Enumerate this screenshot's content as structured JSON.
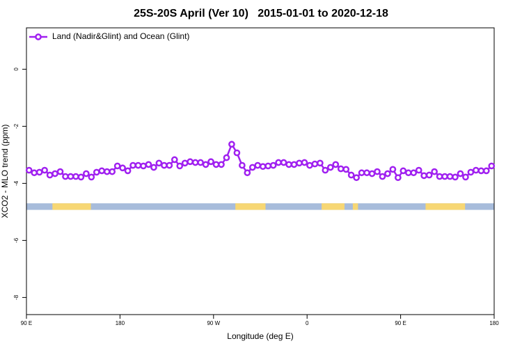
{
  "chart_data": {
    "type": "line",
    "title": "25S-20S April (Ver 10)   2015-01-01 to 2020-12-18",
    "xlabel": "Longitude (deg E)",
    "ylabel": "XCO2 - MLO trend (ppm)",
    "xlim": [
      90,
      540
    ],
    "xticks": [
      {
        "value": 90,
        "label": "90 E"
      },
      {
        "value": 180,
        "label": "180"
      },
      {
        "value": 270,
        "label": "90 W"
      },
      {
        "value": 360,
        "label": "0"
      },
      {
        "value": 450,
        "label": "90 E"
      },
      {
        "value": 540,
        "label": "180"
      }
    ],
    "ylim": [
      -8.6,
      1.45
    ],
    "yticks": [
      0,
      -2,
      -4,
      -6,
      -8
    ],
    "legend": "top-left",
    "surface_band": {
      "ylim": [
        -4.93,
        -4.7
      ],
      "land": [
        [
          115,
          152
        ],
        [
          291,
          320
        ],
        [
          374,
          396
        ],
        [
          404,
          409
        ],
        [
          474,
          512
        ]
      ],
      "ocean_color": "#a7bcdb",
      "land_color": "#f7d774"
    },
    "x": [
      92.5,
      97.5,
      102.5,
      107.5,
      112.5,
      117.5,
      122.5,
      127.5,
      132.5,
      137.5,
      142.5,
      147.5,
      152.5,
      157.5,
      162.5,
      167.5,
      172.5,
      177.5,
      182.5,
      187.5,
      192.5,
      197.5,
      202.5,
      207.5,
      212.5,
      217.5,
      222.5,
      227.5,
      232.5,
      237.5,
      242.5,
      247.5,
      252.5,
      257.5,
      262.5,
      267.5,
      272.5,
      277.5,
      282.5,
      287.5,
      292.5,
      297.5,
      302.5,
      307.5,
      312.5,
      317.5,
      322.5,
      327.5,
      332.5,
      337.5,
      342.5,
      347.5,
      352.5,
      357.5,
      362.5,
      367.5,
      372.5,
      377.5,
      382.5,
      387.5,
      392.5,
      397.5,
      402.5,
      407.5,
      412.5,
      417.5,
      422.5,
      427.5,
      432.5,
      437.5,
      442.5,
      447.5,
      452.5,
      457.5,
      462.5,
      467.5,
      472.5,
      477.5,
      482.5,
      487.5,
      492.5,
      497.5,
      502.5,
      507.5,
      512.5,
      517.5,
      522.5,
      527.5,
      532.5,
      537.5
    ],
    "series": [
      {
        "name": "Land (Nadir&Glint) and Ocean (Glint)",
        "color": "#a020f0",
        "values": [
          -3.54,
          -3.63,
          -3.61,
          -3.54,
          -3.71,
          -3.66,
          -3.59,
          -3.76,
          -3.76,
          -3.76,
          -3.78,
          -3.66,
          -3.78,
          -3.61,
          -3.56,
          -3.59,
          -3.59,
          -3.39,
          -3.46,
          -3.56,
          -3.37,
          -3.37,
          -3.39,
          -3.34,
          -3.44,
          -3.29,
          -3.37,
          -3.37,
          -3.17,
          -3.39,
          -3.29,
          -3.24,
          -3.27,
          -3.27,
          -3.34,
          -3.24,
          -3.34,
          -3.34,
          -3.1,
          -2.63,
          -2.93,
          -3.37,
          -3.63,
          -3.44,
          -3.37,
          -3.41,
          -3.39,
          -3.37,
          -3.27,
          -3.27,
          -3.34,
          -3.34,
          -3.29,
          -3.27,
          -3.37,
          -3.32,
          -3.29,
          -3.54,
          -3.44,
          -3.34,
          -3.49,
          -3.51,
          -3.71,
          -3.8,
          -3.63,
          -3.63,
          -3.66,
          -3.59,
          -3.76,
          -3.66,
          -3.51,
          -3.8,
          -3.56,
          -3.63,
          -3.63,
          -3.54,
          -3.73,
          -3.71,
          -3.59,
          -3.76,
          -3.76,
          -3.76,
          -3.78,
          -3.66,
          -3.78,
          -3.61,
          -3.54,
          -3.56,
          -3.56,
          -3.39
        ]
      }
    ]
  }
}
